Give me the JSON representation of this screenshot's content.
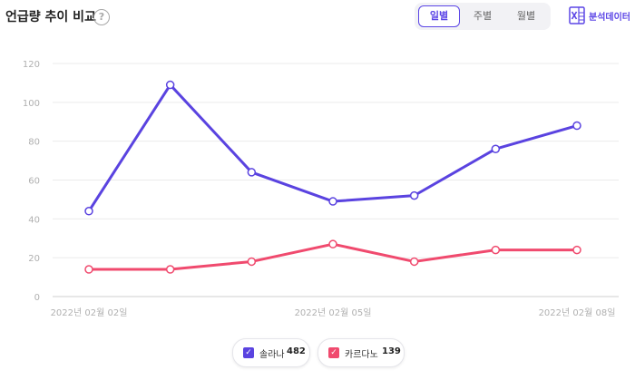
{
  "header": {
    "title": "언급량 추이 비교",
    "help_icon": "?",
    "tabs": [
      {
        "label": "일별",
        "active": true
      },
      {
        "label": "주별",
        "active": false
      },
      {
        "label": "월별",
        "active": false
      }
    ],
    "export_label": "분석데이터",
    "export_icon": "excel-icon"
  },
  "chart_data": {
    "type": "line",
    "ylim": [
      0,
      120
    ],
    "yticks": [
      0,
      20,
      40,
      60,
      80,
      100,
      120
    ],
    "x": [
      "2022-02-02",
      "2022-02-03",
      "2022-02-04",
      "2022-02-05",
      "2022-02-06",
      "2022-02-07",
      "2022-02-08"
    ],
    "x_tick_labels": [
      "2022년 02월 02일",
      "2022년 02월 05일",
      "2022년 02월 08일"
    ],
    "series": [
      {
        "name": "솔라나",
        "color": "#5a43e0",
        "values": [
          44,
          109,
          64,
          49,
          52,
          76,
          88
        ]
      },
      {
        "name": "카르다노",
        "color": "#f04a6e",
        "values": [
          14,
          14,
          18,
          27,
          18,
          24,
          24
        ]
      }
    ],
    "grid": true
  },
  "legend": {
    "items": [
      {
        "name": "솔라나",
        "count": "482",
        "color": "#5a43e0"
      },
      {
        "name": "카르다노",
        "count": "139",
        "color": "#f04a6e"
      }
    ]
  }
}
